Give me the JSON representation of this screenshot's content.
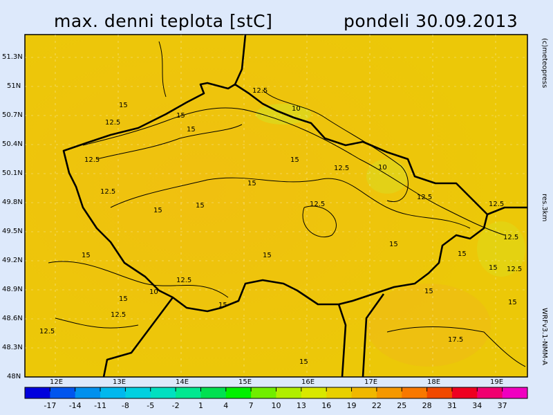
{
  "title": "max. denni teplota [stC]",
  "date": "pondeli 30.09.2013",
  "copyright": "(c)meteopress",
  "resolution": "res.3km",
  "model": "WRFv3.1-NMM-A",
  "lat_labels": [
    "51.3N",
    "51N",
    "50.7N",
    "50.4N",
    "50.1N",
    "49.8N",
    "49.5N",
    "49.2N",
    "48.9N",
    "48.6N",
    "48.3N",
    "48N"
  ],
  "lon_labels": [
    "12E",
    "13E",
    "14E",
    "15E",
    "16E",
    "17E",
    "18E",
    "19E"
  ],
  "colorbar": {
    "ticks": [
      "-17",
      "-14",
      "-11",
      "-8",
      "-5",
      "-2",
      "1",
      "4",
      "7",
      "10",
      "13",
      "16",
      "19",
      "22",
      "25",
      "28",
      "31",
      "34",
      "37"
    ],
    "colors": [
      "#0000dd",
      "#0055ee",
      "#0090ee",
      "#00b8ee",
      "#00d0e0",
      "#00e0c0",
      "#00e890",
      "#00e050",
      "#00f000",
      "#70ee00",
      "#b0ee00",
      "#d8e800",
      "#e8d000",
      "#f0b800",
      "#f59800",
      "#f87800",
      "#f04800",
      "#ee0020",
      "#f00070",
      "#f000c0"
    ]
  },
  "contour_labels": [
    "12.5",
    "10",
    "15",
    "12.5",
    "15",
    "15",
    "12.5",
    "15",
    "15",
    "12.5",
    "10",
    "12.5",
    "15",
    "15",
    "12.5",
    "12.5",
    "15",
    "15",
    "12.5",
    "15",
    "12.5",
    "10",
    "12.5",
    "15",
    "15",
    "12.5",
    "15",
    "12.5",
    "15",
    "15",
    "17.5",
    "15",
    "12.5",
    "15"
  ]
}
